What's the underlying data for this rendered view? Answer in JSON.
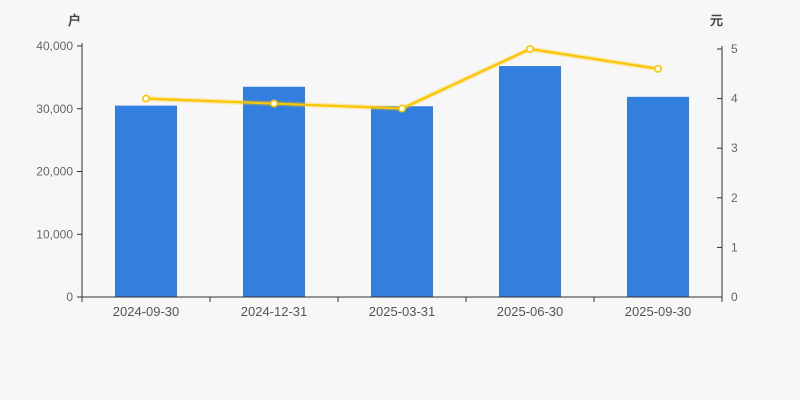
{
  "page": {
    "background": "#f7f7f7"
  },
  "chart_data": {
    "type": "bar",
    "title": "",
    "legend": "none",
    "grid": false,
    "categories": [
      "2024-09-30",
      "2024-12-31",
      "2025-03-31",
      "2025-06-30",
      "2025-09-30"
    ],
    "series": [
      {
        "name": "户",
        "type": "bar",
        "axis": "left",
        "color": "#337fe0",
        "values": [
          30500,
          33500,
          30400,
          36800,
          31900
        ]
      },
      {
        "name": "元",
        "type": "line",
        "axis": "right",
        "color": "#fbc600",
        "marker": "hollow-circle",
        "marker_fill": "#ffffff",
        "values": [
          4.0,
          3.9,
          3.8,
          5.0,
          4.6
        ]
      }
    ],
    "left_axis": {
      "name": "户",
      "min": 0,
      "max": 40000,
      "tick_step": 10000,
      "tick_labels": [
        "0",
        "10,000",
        "20,000",
        "30,000",
        "40,000"
      ]
    },
    "right_axis": {
      "name": "元",
      "min": 0,
      "max": 5,
      "tick_step": 1,
      "tick_labels": [
        "0",
        "1",
        "2",
        "3",
        "4",
        "5"
      ]
    },
    "axis_color": "#333333",
    "tick_label_color": "#666666",
    "x_label_color": "#555555"
  }
}
